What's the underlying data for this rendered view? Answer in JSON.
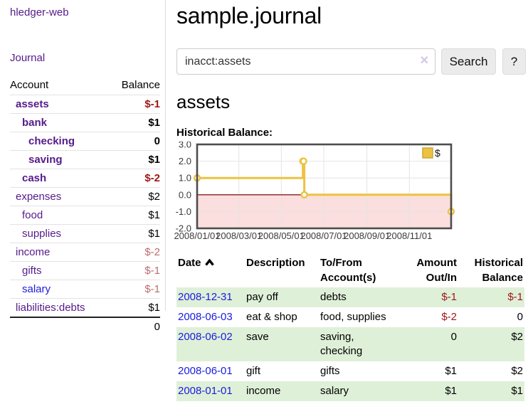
{
  "colors": {
    "link_purple": "#551a8b",
    "link_blue": "#1b1be0",
    "negative": "#9e1616",
    "negative_dim": "#bc6b70",
    "row_green": "#dff0d8",
    "button_bg": "#ebebeb"
  },
  "sidebar": {
    "app_title": "hledger-web",
    "journal_label": "Journal",
    "accounts_table": {
      "headers": [
        "Account",
        "Balance"
      ],
      "rows": [
        {
          "account": "assets",
          "balance": "$-1",
          "level": 1,
          "bold": true,
          "balance_class": "neg"
        },
        {
          "account": "bank",
          "balance": "$1",
          "level": 2,
          "bold": true,
          "balance_class": ""
        },
        {
          "account": "checking",
          "balance": "0",
          "level": 3,
          "bold": true,
          "balance_class": ""
        },
        {
          "account": "saving",
          "balance": "$1",
          "level": 3,
          "bold": true,
          "balance_class": ""
        },
        {
          "account": "cash",
          "balance": "$-2",
          "level": 2,
          "bold": true,
          "balance_class": "neg"
        },
        {
          "account": "expenses",
          "balance": "$2",
          "level": 1,
          "bold": false,
          "balance_class": ""
        },
        {
          "account": "food",
          "balance": "$1",
          "level": 2,
          "bold": false,
          "balance_class": ""
        },
        {
          "account": "supplies",
          "balance": "$1",
          "level": 2,
          "bold": false,
          "balance_class": ""
        },
        {
          "account": "income",
          "balance": "$-2",
          "level": 1,
          "bold": false,
          "balance_class": "negdim"
        },
        {
          "account": "gifts",
          "balance": "$-1",
          "level": 2,
          "bold": false,
          "balance_class": "negdim"
        },
        {
          "account": "salary",
          "balance": "$-1",
          "level": 2,
          "bold": false,
          "balance_class": "negdim",
          "link_class": "blue"
        },
        {
          "account": "liabilities:debts",
          "balance": "$1",
          "level": 1,
          "bold": false,
          "balance_class": ""
        }
      ],
      "total": "0"
    }
  },
  "main": {
    "title": "sample.journal",
    "search": {
      "value": "inacct:assets",
      "clear_glyph": "✕",
      "button_label": "Search",
      "help_label": "?"
    },
    "account_heading": "assets",
    "chart_label": "Historical Balance:",
    "register_table": {
      "headers": [
        "Date",
        "Description",
        "To/From Account(s)",
        "Amount Out/In",
        "Historical Balance"
      ],
      "rows": [
        {
          "date": "2008-12-31",
          "description": "pay off",
          "accounts": "debts",
          "amount": "$-1",
          "amount_class": "neg",
          "balance": "$-1",
          "balance_class": "neg"
        },
        {
          "date": "2008-06-03",
          "description": "eat & shop",
          "accounts": "food, supplies",
          "amount": "$-2",
          "amount_class": "neg",
          "balance": "0",
          "balance_class": ""
        },
        {
          "date": "2008-06-02",
          "description": "save",
          "accounts": "saving, checking",
          "amount": "0",
          "amount_class": "",
          "balance": "$2",
          "balance_class": ""
        },
        {
          "date": "2008-06-01",
          "description": "gift",
          "accounts": "gifts",
          "amount": "$1",
          "amount_class": "",
          "balance": "$2",
          "balance_class": ""
        },
        {
          "date": "2008-01-01",
          "description": "income",
          "accounts": "salary",
          "amount": "$1",
          "amount_class": "",
          "balance": "$1",
          "balance_class": ""
        }
      ]
    }
  },
  "chart_data": {
    "type": "line",
    "step": true,
    "title": "Historical Balance",
    "x_unit": "days since 2008-01-01",
    "xlim": [
      0,
      365
    ],
    "ylim": [
      -2,
      3
    ],
    "grid": true,
    "series": [
      {
        "name": "$",
        "color": "#edc240",
        "points": [
          [
            0,
            1
          ],
          [
            152,
            2
          ],
          [
            153,
            2
          ],
          [
            154,
            0
          ],
          [
            365,
            -1
          ]
        ]
      }
    ],
    "x_ticks": [
      {
        "pos": 0,
        "label": "2008/01/01"
      },
      {
        "pos": 60,
        "label": "2008/03/01"
      },
      {
        "pos": 121,
        "label": "2008/05/01"
      },
      {
        "pos": 182,
        "label": "2008/07/01"
      },
      {
        "pos": 244,
        "label": "2008/09/01"
      },
      {
        "pos": 305,
        "label": "2008/11/01"
      }
    ],
    "y_ticks": [
      {
        "pos": 3,
        "label": "3.0"
      },
      {
        "pos": 2,
        "label": "2.0"
      },
      {
        "pos": 1,
        "label": "1.0"
      },
      {
        "pos": 0,
        "label": "0.0"
      },
      {
        "pos": -1,
        "label": "-1.0"
      },
      {
        "pos": -2,
        "label": "-2.0"
      }
    ],
    "legend": {
      "label": "$",
      "position": "top-right"
    },
    "zero_line_color": "#8b1c1c",
    "negative_region_fill": "#fbdede",
    "grid_color": "#e4e4e4",
    "border_color": "#4d4d4d",
    "tick_label_color": "#3a3a3a"
  }
}
